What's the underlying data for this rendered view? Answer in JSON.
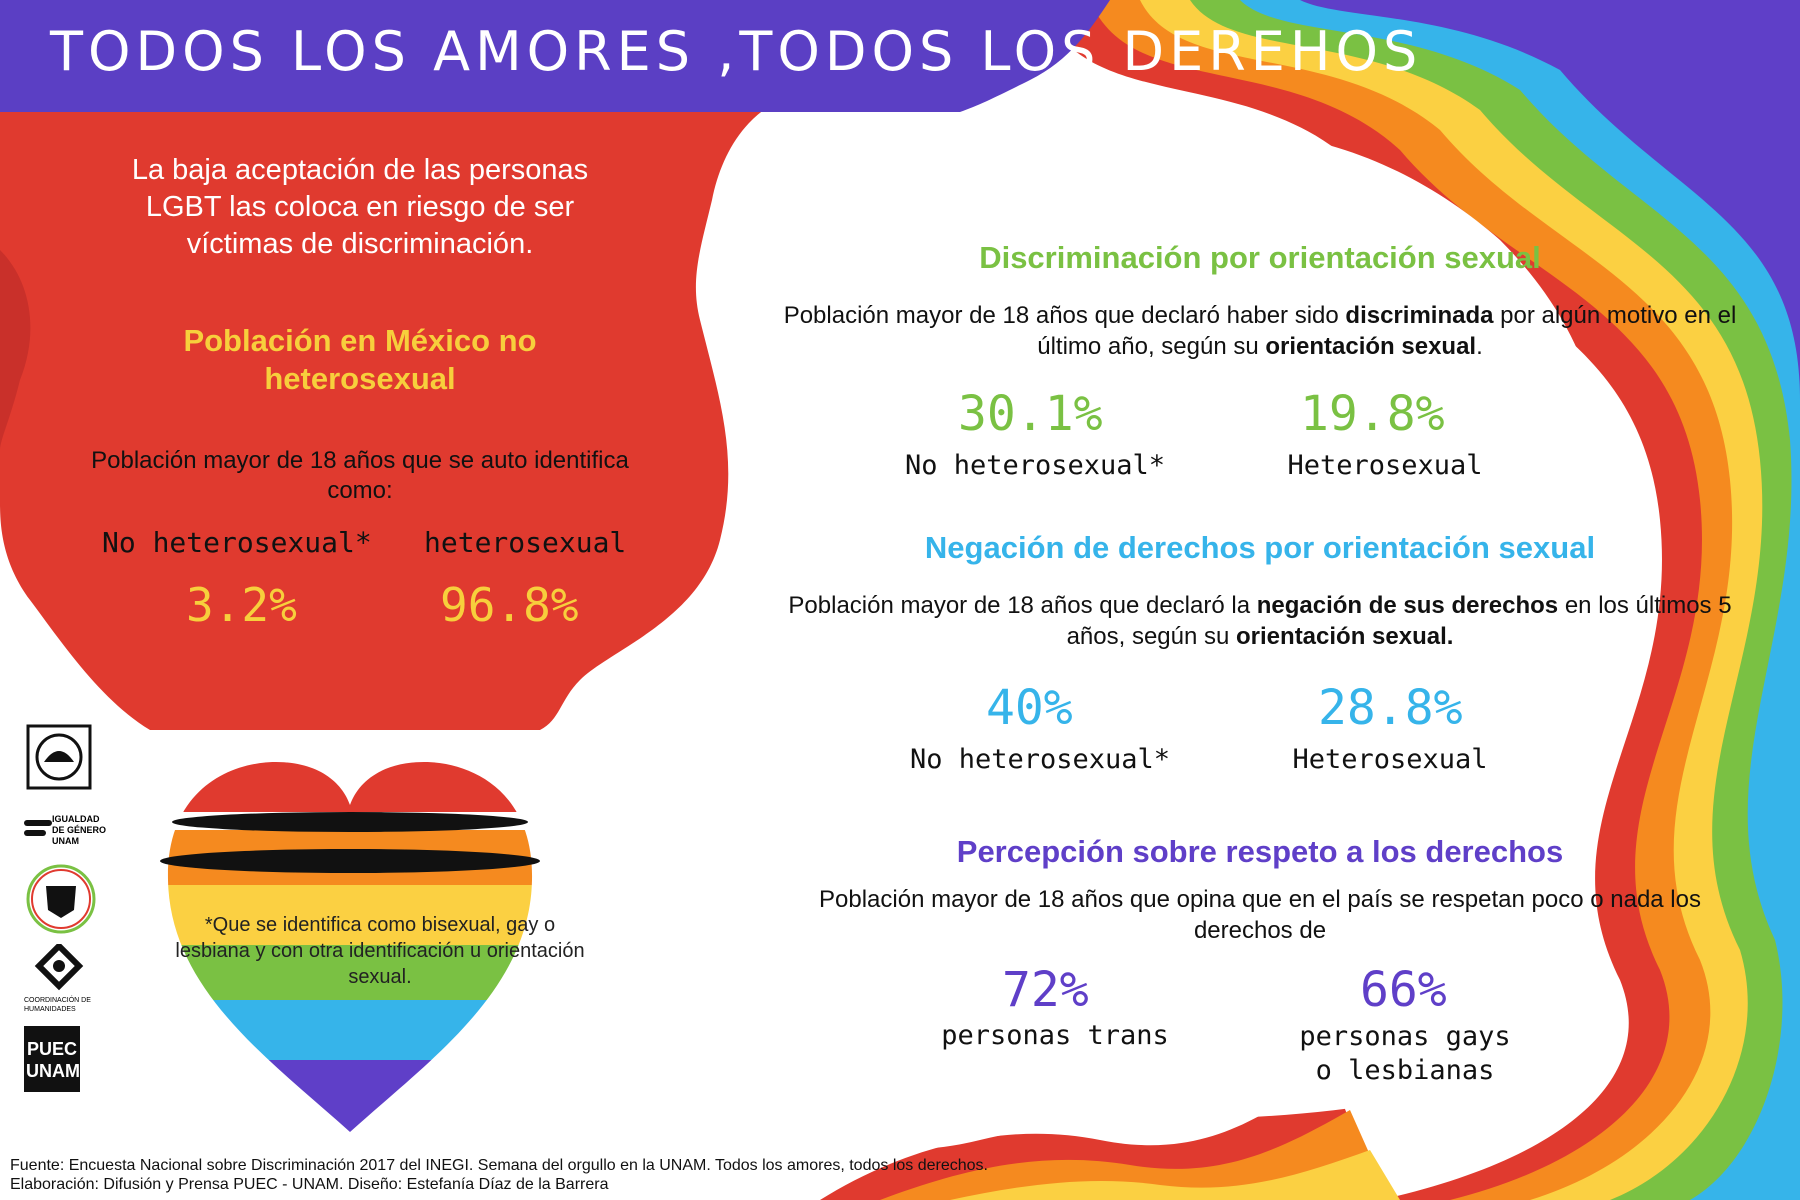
{
  "header": {
    "title": "TODOS LOS AMORES ,TODOS LOS DEREHOS"
  },
  "colors": {
    "purple": "#5b3fc4",
    "red": "#e03a2f",
    "orange": "#f58a1f",
    "yellow": "#fbd042",
    "green": "#7ac143",
    "blue": "#36b4ea",
    "violet": "#5f3fc8"
  },
  "intro": {
    "text": "La baja aceptación de las personas LGBT las coloca en riesgo de ser víctimas de discriminación."
  },
  "population": {
    "title": "Población en México no heterosexual",
    "description": "Población mayor de 18 años que se auto identifica como:",
    "items": [
      {
        "label": "No heterosexual*",
        "value": "3.2%"
      },
      {
        "label": "heterosexual",
        "value": "96.8%"
      }
    ]
  },
  "note": "*Que se identifica como bisexual, gay o lesbiana y con otra identificación u orientación sexual.",
  "logos": [
    {
      "name": "unam-seal-icon"
    },
    {
      "name": "igualdad-genero-logo",
      "text": "IGUALDAD DE GÉNERO UNAM"
    },
    {
      "name": "pumas-logo-icon"
    },
    {
      "name": "coordinacion-humanidades-logo",
      "text": "COORDINACIÓN DE HUMANIDADES"
    },
    {
      "name": "puec-logo",
      "text": "PUEC UNAM"
    }
  ],
  "sections": [
    {
      "title": "Discriminación por orientación sexual",
      "description_parts": [
        "Población mayor de 18 años que declaró haber sido ",
        "discriminada",
        " por algún motivo en el último año, según su ",
        "orientación sexual",
        "."
      ],
      "stats": [
        {
          "value": "30.1%",
          "label": "No heterosexual*"
        },
        {
          "value": "19.8%",
          "label": "Heterosexual"
        }
      ]
    },
    {
      "title": "Negación de derechos por orientación sexual",
      "description_parts": [
        "Población mayor de 18 años que declaró la ",
        "negación de sus derechos",
        " en los últimos 5 años, según su ",
        "orientación sexual."
      ],
      "stats": [
        {
          "value": "40%",
          "label": "No heterosexual*"
        },
        {
          "value": "28.8%",
          "label": "Heterosexual"
        }
      ]
    },
    {
      "title": "Percepción sobre respeto a los derechos",
      "description": "Población mayor de 18 años que opina que en el país se respetan poco o nada los derechos de",
      "stats": [
        {
          "value": "72%",
          "label": "personas trans"
        },
        {
          "value": "66%",
          "label": "personas gays o lesbianas"
        }
      ]
    }
  ],
  "source": {
    "line1": "Fuente: Encuesta Nacional sobre Discriminación 2017 del INEGI. Semana del orgullo en la UNAM. Todos los amores, todos los derechos.",
    "line2": "Elaboración: Difusión y Prensa PUEC - UNAM. Diseño: Estefanía Díaz de la Barrera"
  }
}
